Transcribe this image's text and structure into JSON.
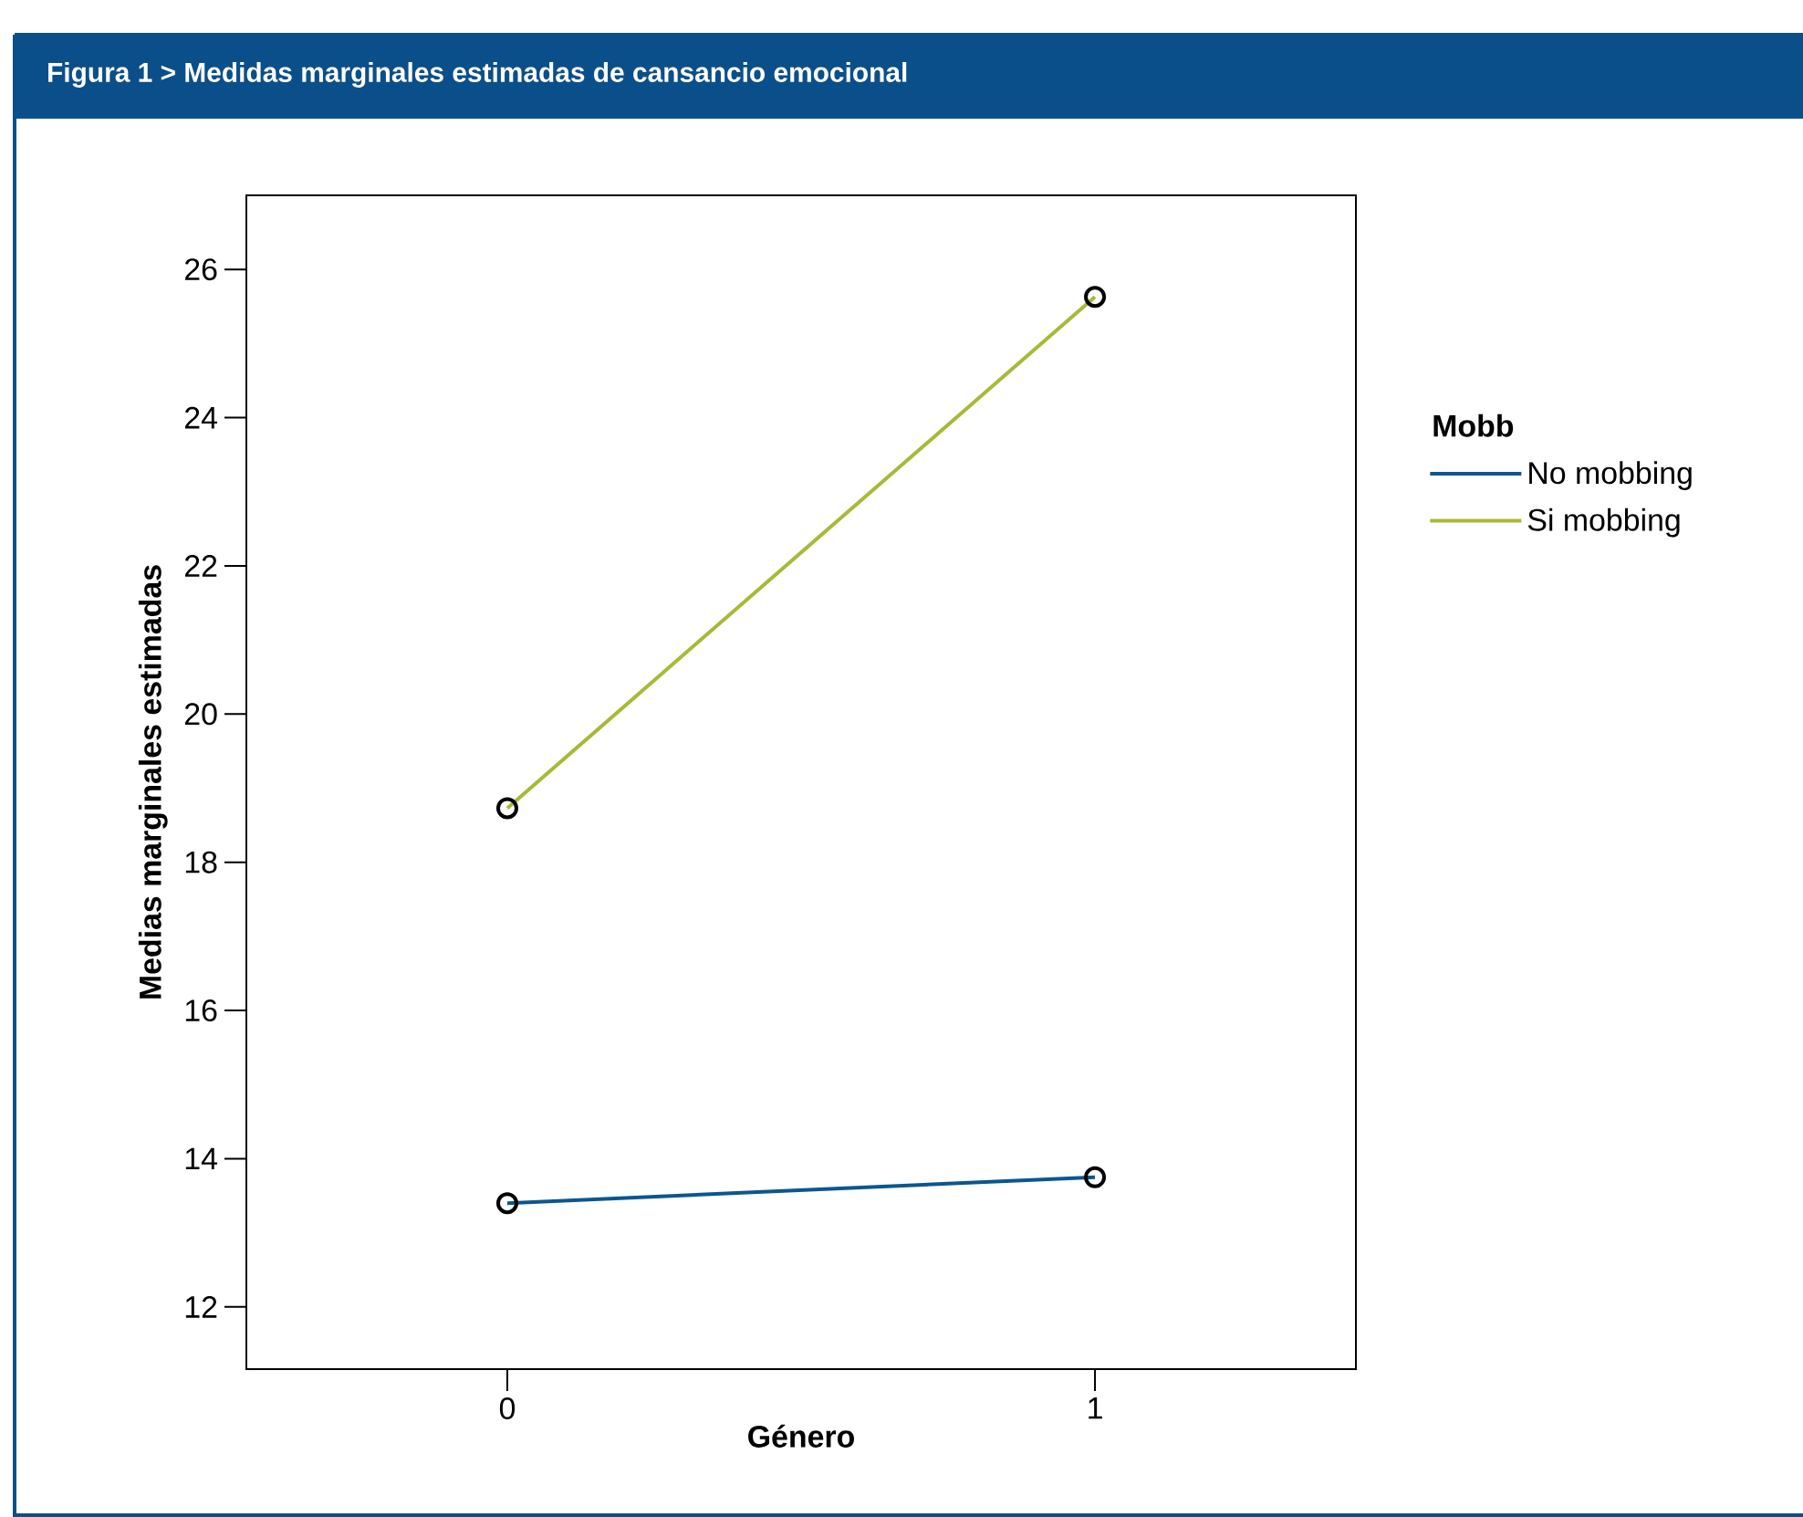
{
  "chart_data": {
    "type": "line",
    "title": "Figura 1 > Medidas marginales estimadas de cansancio emocional",
    "xlabel": "Género",
    "ylabel": "Medias marginales estimadas",
    "legend_title": "Mobb",
    "categories": [
      "0",
      "1"
    ],
    "series": [
      {
        "name": "No mobbing",
        "color": "#0b5690",
        "values": [
          13.4,
          13.75
        ]
      },
      {
        "name": "Si mobbing",
        "color": "#a9b936",
        "values": [
          18.73,
          25.63
        ]
      }
    ],
    "ylim": [
      11.16,
      27.0
    ],
    "yticks": [
      12,
      14,
      16,
      18,
      20,
      22,
      24,
      26
    ],
    "legend": "right",
    "marker": "circle",
    "line_style": "solid"
  }
}
